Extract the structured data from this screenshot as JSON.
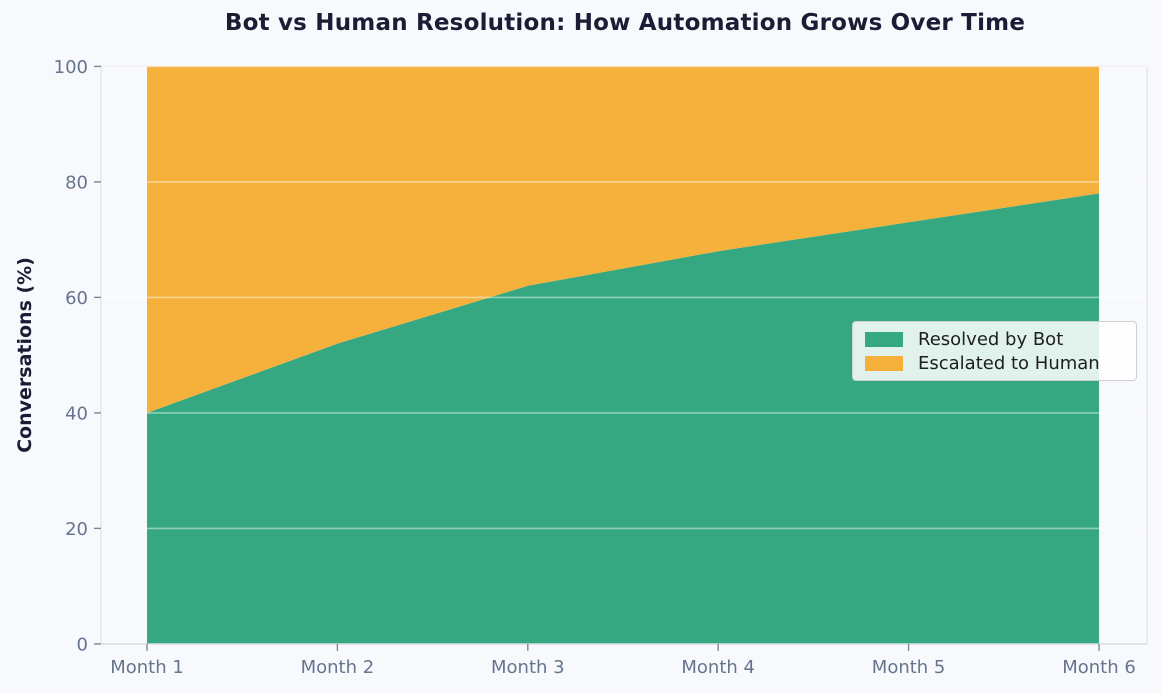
{
  "figure": {
    "background_color": "#f8f9fd",
    "title": "Bot vs Human Resolution: How Automation Grows Over Time",
    "title_color": "#1b1d35"
  },
  "chart_data": {
    "type": "area",
    "stacked": true,
    "title": "Bot vs Human Resolution: How Automation Grows Over Time",
    "xlabel": "",
    "ylabel": "Conversations (%)",
    "categories": [
      "Month 1",
      "Month 2",
      "Month 3",
      "Month 4",
      "Month 5",
      "Month 6"
    ],
    "series": [
      {
        "name": "Resolved by Bot",
        "color": "#35a882",
        "values": [
          40,
          52,
          62,
          68,
          73,
          78
        ]
      },
      {
        "name": "Escalated to Human",
        "color": "#f6b13c",
        "values": [
          60,
          48,
          38,
          32,
          27,
          22
        ]
      }
    ],
    "ylim": [
      0,
      100
    ],
    "yticks": [
      0,
      20,
      40,
      60,
      80,
      100
    ],
    "grid": "horizontal white gridlines over areas",
    "legend_position": "center-right"
  },
  "style": {
    "tick_label_color": "#66748e",
    "tick_mark_color": "#7b8799",
    "spine_color": "#e3e5ea",
    "grid_color": "rgba(255,255,255,0.45)",
    "legend_text_color": "#1e1e1e",
    "legend_border_color": "#cbcfd6"
  }
}
